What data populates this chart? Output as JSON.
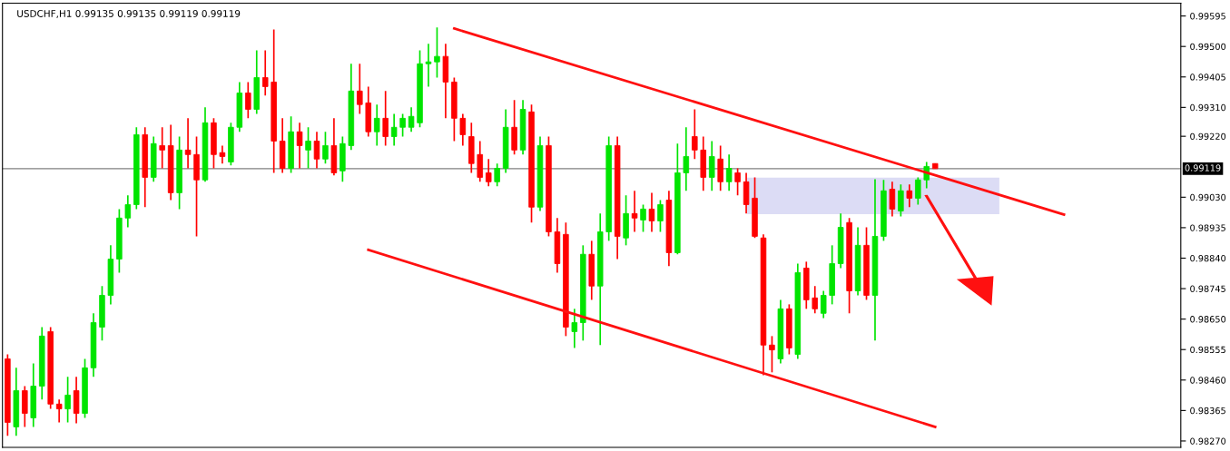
{
  "chart_data": {
    "type": "candlestick",
    "title": "USDCHF,H1 0.99135 0.99135 0.99119 0.99119",
    "categories": [
      null,
      null,
      null,
      null,
      null,
      null,
      null,
      null,
      null,
      null,
      null,
      null,
      null,
      null,
      null,
      null,
      null,
      null,
      null,
      null,
      null,
      null,
      null,
      null,
      null,
      null,
      null,
      null,
      null,
      null,
      null,
      null,
      null,
      null,
      null,
      null,
      null,
      null,
      null,
      null,
      null,
      null,
      null,
      null,
      null,
      null,
      null,
      null,
      null,
      null,
      null,
      null,
      null,
      null,
      null,
      null,
      null,
      null,
      null,
      null,
      null,
      null,
      null,
      null,
      null,
      null,
      null,
      null,
      null,
      null,
      null,
      null,
      null,
      null,
      null,
      null,
      null,
      null,
      null,
      null,
      null,
      null,
      null,
      null,
      null,
      null,
      null,
      null,
      null,
      null,
      null,
      null,
      null,
      null,
      null,
      null,
      null,
      null,
      null,
      null,
      null,
      null,
      null,
      null,
      null,
      null,
      null,
      null,
      null,
      null,
      null,
      null,
      null,
      null,
      null,
      null,
      null,
      null,
      null,
      null,
      null,
      null,
      null,
      null,
      null,
      null,
      null,
      null,
      null,
      null,
      null,
      null,
      null,
      null,
      null,
      null,
      null
    ],
    "ohlc": [
      [
        0.98526,
        0.9854,
        0.98286,
        0.98328
      ],
      [
        0.98314,
        0.98498,
        0.98286,
        0.98427
      ],
      [
        0.98427,
        0.98441,
        0.98314,
        0.98356
      ],
      [
        0.98342,
        0.98512,
        0.98314,
        0.98441
      ],
      [
        0.98441,
        0.98625,
        0.98399,
        0.98597
      ],
      [
        0.98611,
        0.98625,
        0.9837,
        0.98385
      ],
      [
        0.98385,
        0.98399,
        0.98328,
        0.9837
      ],
      [
        0.9837,
        0.9847,
        0.98328,
        0.98413
      ],
      [
        0.98427,
        0.9847,
        0.98325,
        0.98356
      ],
      [
        0.98356,
        0.98526,
        0.98342,
        0.98498
      ],
      [
        0.98498,
        0.98668,
        0.9847,
        0.98639
      ],
      [
        0.98625,
        0.98753,
        0.98583,
        0.98724
      ],
      [
        0.98724,
        0.9888,
        0.98696,
        0.98837
      ],
      [
        0.98837,
        0.98993,
        0.98795,
        0.98965
      ],
      [
        0.98965,
        0.99036,
        0.98936,
        0.99007
      ],
      [
        0.99007,
        0.99248,
        0.98993,
        0.99225
      ],
      [
        0.99225,
        0.99248,
        0.98999,
        0.99092
      ],
      [
        0.99092,
        0.99219,
        0.99078,
        0.99197
      ],
      [
        0.99191,
        0.99248,
        0.9912,
        0.99177
      ],
      [
        0.99191,
        0.99256,
        0.99021,
        0.99044
      ],
      [
        0.99044,
        0.99219,
        0.98993,
        0.99177
      ],
      [
        0.99177,
        0.99276,
        0.9912,
        0.99163
      ],
      [
        0.99163,
        0.99219,
        0.98908,
        0.99084
      ],
      [
        0.99084,
        0.9931,
        0.99078,
        0.99262
      ],
      [
        0.99262,
        0.99276,
        0.9912,
        0.99163
      ],
      [
        0.99169,
        0.99191,
        0.99135,
        0.99157
      ],
      [
        0.9914,
        0.99262,
        0.99129,
        0.99248
      ],
      [
        0.99248,
        0.99389,
        0.99234,
        0.99355
      ],
      [
        0.99355,
        0.99389,
        0.99276,
        0.99304
      ],
      [
        0.99304,
        0.99488,
        0.9929,
        0.99403
      ],
      [
        0.99403,
        0.99488,
        0.99347,
        0.99375
      ],
      [
        0.99389,
        0.99553,
        0.99106,
        0.99205
      ],
      [
        0.99205,
        0.99276,
        0.99106,
        0.9912
      ],
      [
        0.9912,
        0.99282,
        0.99106,
        0.99234
      ],
      [
        0.99234,
        0.99262,
        0.9912,
        0.99191
      ],
      [
        0.99177,
        0.99248,
        0.9912,
        0.99205
      ],
      [
        0.99205,
        0.99234,
        0.9912,
        0.99149
      ],
      [
        0.99149,
        0.99234,
        0.99135,
        0.99191
      ],
      [
        0.99191,
        0.99276,
        0.99098,
        0.99106
      ],
      [
        0.99112,
        0.99219,
        0.99078,
        0.99197
      ],
      [
        0.99191,
        0.99446,
        0.99177,
        0.99361
      ],
      [
        0.99361,
        0.99446,
        0.9929,
        0.99319
      ],
      [
        0.99324,
        0.99375,
        0.99219,
        0.99234
      ],
      [
        0.99234,
        0.99319,
        0.99191,
        0.99276
      ],
      [
        0.99276,
        0.99361,
        0.99191,
        0.99219
      ],
      [
        0.99219,
        0.9929,
        0.99191,
        0.99248
      ],
      [
        0.99248,
        0.9929,
        0.99219,
        0.99276
      ],
      [
        0.99248,
        0.9931,
        0.99234,
        0.99282
      ],
      [
        0.99262,
        0.99488,
        0.99248,
        0.99446
      ],
      [
        0.99446,
        0.99508,
        0.99375,
        0.99452
      ],
      [
        0.99452,
        0.99559,
        0.99403,
        0.99469
      ],
      [
        0.99469,
        0.99508,
        0.99276,
        0.99389
      ],
      [
        0.99389,
        0.99403,
        0.99205,
        0.99276
      ],
      [
        0.99276,
        0.9929,
        0.99191,
        0.99225
      ],
      [
        0.99219,
        0.99262,
        0.99106,
        0.99135
      ],
      [
        0.99163,
        0.99205,
        0.99078,
        0.99092
      ],
      [
        0.99106,
        0.99149,
        0.99064,
        0.99078
      ],
      [
        0.99078,
        0.99135,
        0.99064,
        0.9912
      ],
      [
        0.9912,
        0.99304,
        0.99106,
        0.99248
      ],
      [
        0.99248,
        0.99333,
        0.99163,
        0.99177
      ],
      [
        0.99177,
        0.99333,
        0.99163,
        0.99304
      ],
      [
        0.99296,
        0.99319,
        0.98951,
        0.98999
      ],
      [
        0.98999,
        0.99219,
        0.98987,
        0.99191
      ],
      [
        0.99191,
        0.99219,
        0.98908,
        0.98922
      ],
      [
        0.98922,
        0.98965,
        0.98795,
        0.98823
      ],
      [
        0.98914,
        0.98951,
        0.98597,
        0.98625
      ],
      [
        0.98611,
        0.98682,
        0.9856,
        0.98639
      ],
      [
        0.98639,
        0.9888,
        0.98583,
        0.98852
      ],
      [
        0.98852,
        0.98894,
        0.9871,
        0.98753
      ],
      [
        0.98753,
        0.98979,
        0.98569,
        0.98922
      ],
      [
        0.98922,
        0.99219,
        0.98894,
        0.99191
      ],
      [
        0.99191,
        0.99219,
        0.98837,
        0.98908
      ],
      [
        0.98903,
        0.99036,
        0.9888,
        0.98979
      ],
      [
        0.98979,
        0.9905,
        0.98922,
        0.98965
      ],
      [
        0.98959,
        0.99007,
        0.98922,
        0.98993
      ],
      [
        0.98993,
        0.99044,
        0.98922,
        0.98956
      ],
      [
        0.98956,
        0.99021,
        0.98922,
        0.99007
      ],
      [
        0.99021,
        0.9905,
        0.98815,
        0.98857
      ],
      [
        0.98857,
        0.99197,
        0.98852,
        0.99106
      ],
      [
        0.99106,
        0.99248,
        0.9905,
        0.99157
      ],
      [
        0.99219,
        0.99304,
        0.99149,
        0.99177
      ],
      [
        0.99177,
        0.99219,
        0.9905,
        0.99092
      ],
      [
        0.99092,
        0.99205,
        0.9905,
        0.99157
      ],
      [
        0.99149,
        0.99191,
        0.9905,
        0.99078
      ],
      [
        0.99078,
        0.99163,
        0.9905,
        0.9912
      ],
      [
        0.99106,
        0.9912,
        0.99036,
        0.99078
      ],
      [
        0.99078,
        0.99106,
        0.98979,
        0.99007
      ],
      [
        0.99027,
        0.99092,
        0.98903,
        0.98908
      ],
      [
        0.98903,
        0.98914,
        0.98475,
        0.98569
      ],
      [
        0.98569,
        0.98597,
        0.98484,
        0.98554
      ],
      [
        0.98526,
        0.9871,
        0.98512,
        0.98682
      ],
      [
        0.98682,
        0.98696,
        0.9854,
        0.9856
      ],
      [
        0.9854,
        0.98823,
        0.98526,
        0.98795
      ],
      [
        0.98809,
        0.98829,
        0.98682,
        0.9871
      ],
      [
        0.98716,
        0.98753,
        0.98668,
        0.98682
      ],
      [
        0.98668,
        0.98738,
        0.98653,
        0.98724
      ],
      [
        0.98724,
        0.9888,
        0.98696,
        0.98823
      ],
      [
        0.98823,
        0.98979,
        0.98809,
        0.98936
      ],
      [
        0.98951,
        0.98965,
        0.98668,
        0.98738
      ],
      [
        0.98738,
        0.98936,
        0.98724,
        0.9888
      ],
      [
        0.9888,
        0.98936,
        0.9871,
        0.98724
      ],
      [
        0.98724,
        0.99086,
        0.98583,
        0.98908
      ],
      [
        0.98908,
        0.99084,
        0.98894,
        0.9905
      ],
      [
        0.99055,
        0.99078,
        0.9897,
        0.98993
      ],
      [
        0.98987,
        0.9907,
        0.9897,
        0.9905
      ],
      [
        0.9905,
        0.9907,
        0.98999,
        0.99027
      ],
      [
        0.99027,
        0.99092,
        0.99007,
        0.99084
      ],
      [
        0.99084,
        0.9914,
        0.99058,
        0.99126
      ],
      [
        0.99135,
        0.99135,
        0.99119,
        0.99119
      ],
      null,
      null,
      null,
      null,
      null,
      null,
      null,
      null,
      null,
      null,
      null,
      null,
      null,
      null,
      null,
      null,
      null,
      null,
      null,
      null,
      null,
      null,
      null,
      null,
      null,
      null,
      null,
      null
    ],
    "colors": [
      "#ff0000",
      "#00e400",
      "#ff0000",
      "#00e400",
      "#00e400",
      "#ff0000",
      "#ff0000",
      "#00e400",
      "#ff0000",
      "#00e400",
      "#00e400",
      "#00e400",
      "#00e400",
      "#00e400",
      "#00e400",
      "#00e400",
      "#ff0000",
      "#00e400",
      "#ff0000",
      "#ff0000",
      "#00e400",
      "#ff0000",
      "#ff0000",
      "#00e400",
      "#ff0000",
      "#ff0000",
      "#00e400",
      "#00e400",
      "#ff0000",
      "#00e400",
      "#ff0000",
      "#ff0000",
      "#ff0000",
      "#00e400",
      "#ff0000",
      "#00e400",
      "#ff0000",
      "#00e400",
      "#ff0000",
      "#00e400",
      "#00e400",
      "#ff0000",
      "#ff0000",
      "#00e400",
      "#ff0000",
      "#00e400",
      "#00e400",
      "#00e400",
      "#00e400",
      "#00e400",
      "#00e400",
      "#ff0000",
      "#ff0000",
      "#ff0000",
      "#ff0000",
      "#ff0000",
      "#ff0000",
      "#00e400",
      "#00e400",
      "#ff0000",
      "#00e400",
      "#ff0000",
      "#00e400",
      "#ff0000",
      "#ff0000",
      "#ff0000",
      "#00e400",
      "#00e400",
      "#ff0000",
      "#00e400",
      "#00e400",
      "#ff0000",
      "#00e400",
      "#ff0000",
      "#00e400",
      "#ff0000",
      "#00e400",
      "#ff0000",
      "#00e400",
      "#00e400",
      "#ff0000",
      "#ff0000",
      "#00e400",
      "#ff0000",
      "#00e400",
      "#ff0000",
      "#ff0000",
      "#ff0000",
      "#ff0000",
      "#ff0000",
      "#00e400",
      "#ff0000",
      "#00e400",
      "#ff0000",
      "#ff0000",
      "#00e400",
      "#00e400",
      "#00e400",
      "#ff0000",
      "#00e400",
      "#ff0000",
      "#00e400",
      "#00e400",
      "#ff0000",
      "#00e400",
      "#ff0000",
      "#00e400",
      "#00e400",
      "#ff0000",
      null,
      null,
      null,
      null,
      null,
      null,
      null,
      null,
      null,
      null,
      null,
      null,
      null,
      null,
      null,
      null,
      null,
      null,
      null,
      null,
      null,
      null,
      null,
      null,
      null,
      null,
      null,
      null
    ],
    "series": [
      {
        "type": "line",
        "color": "#ff1010",
        "values": [
          null,
          null,
          null,
          null,
          null,
          null,
          null,
          null,
          null,
          null,
          null,
          null,
          null,
          null,
          null,
          null,
          null,
          null,
          null,
          null,
          null,
          null,
          null,
          null,
          null,
          null,
          null,
          null,
          null,
          null,
          null,
          null,
          null,
          null,
          null,
          null,
          null,
          null,
          null,
          null,
          null,
          null,
          null,
          null,
          null,
          null,
          null,
          null,
          null,
          null,
          null,
          null,
          0.99556,
          null,
          null,
          null,
          null,
          null,
          null,
          null,
          null,
          null,
          null,
          null,
          null,
          null,
          null,
          null,
          null,
          null,
          null,
          null,
          null,
          null,
          null,
          null,
          null,
          null,
          null,
          null,
          null,
          null,
          null,
          null,
          null,
          null,
          null,
          null,
          null,
          null,
          null,
          null,
          null,
          null,
          null,
          null,
          null,
          null,
          null,
          null,
          null,
          null,
          null,
          null,
          null,
          null,
          null,
          null,
          null,
          null,
          null,
          null,
          null,
          null,
          null,
          null,
          null,
          null,
          null,
          null,
          null,
          null,
          null,
          0.98976,
          null,
          null,
          null,
          null,
          null,
          null,
          null,
          null,
          null,
          null,
          null,
          null,
          null
        ]
      },
      {
        "type": "line",
        "color": "#ff1010",
        "values": [
          null,
          null,
          null,
          null,
          null,
          null,
          null,
          null,
          null,
          null,
          null,
          null,
          null,
          null,
          null,
          null,
          null,
          null,
          null,
          null,
          null,
          null,
          null,
          null,
          null,
          null,
          null,
          null,
          null,
          null,
          null,
          null,
          null,
          null,
          null,
          null,
          null,
          null,
          null,
          null,
          null,
          null,
          0.98866,
          null,
          null,
          null,
          null,
          null,
          null,
          null,
          null,
          null,
          null,
          null,
          null,
          null,
          null,
          null,
          null,
          null,
          null,
          null,
          null,
          null,
          null,
          null,
          null,
          null,
          null,
          null,
          null,
          null,
          null,
          null,
          null,
          null,
          null,
          null,
          null,
          null,
          null,
          null,
          null,
          null,
          null,
          null,
          null,
          null,
          null,
          null,
          null,
          null,
          null,
          null,
          null,
          null,
          null,
          null,
          null,
          null,
          null,
          null,
          null,
          null,
          null,
          null,
          null,
          null,
          0.98314,
          null,
          null,
          null,
          null,
          null,
          null,
          null,
          null,
          null,
          null,
          null,
          null,
          null,
          null,
          null,
          null,
          null,
          null,
          null,
          null,
          null,
          null,
          null,
          null,
          null,
          null,
          null,
          null
        ]
      }
    ],
    "ref_lines": [
      {
        "axis": "y",
        "value": 0.99119,
        "label": "0.99119",
        "color": "#808080"
      }
    ],
    "ylim": [
      0.9825,
      0.99635
    ],
    "yticks": [
      {
        "value": 0.99595,
        "label": "0.99595"
      },
      {
        "value": 0.995,
        "label": "0.99500"
      },
      {
        "value": 0.99405,
        "label": "0.99405"
      },
      {
        "value": 0.9931,
        "label": "0.99310"
      },
      {
        "value": 0.9922,
        "label": "0.99220"
      },
      {
        "value": 0.9903,
        "label": "0.99030"
      },
      {
        "value": 0.98935,
        "label": "0.98935"
      },
      {
        "value": 0.9884,
        "label": "0.98840"
      },
      {
        "value": 0.98745,
        "label": "0.98745"
      },
      {
        "value": 0.9865,
        "label": "0.98650"
      },
      {
        "value": 0.98555,
        "label": "0.98555"
      },
      {
        "value": 0.9846,
        "label": "0.98460"
      },
      {
        "value": 0.98365,
        "label": "0.98365"
      },
      {
        "value": 0.9827,
        "label": "0.98270"
      }
    ],
    "grid": false,
    "legend": false
  }
}
